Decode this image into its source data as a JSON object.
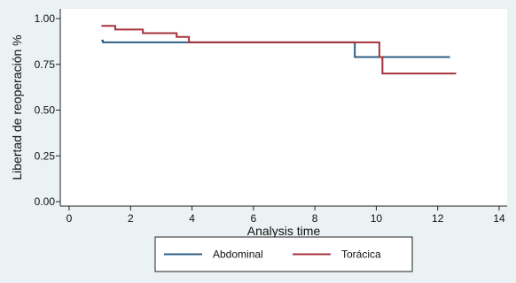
{
  "chart_data": {
    "type": "line",
    "xlabel": "Analysis time",
    "ylabel": "Libertad de reoperación %",
    "xlim": [
      0,
      14
    ],
    "ylim": [
      0,
      1
    ],
    "x_ticks": [
      "0",
      "2",
      "4",
      "6",
      "8",
      "10",
      "12",
      "14"
    ],
    "y_ticks": [
      "0.00",
      "0.25",
      "0.50",
      "0.75",
      "1.00"
    ],
    "grid": false,
    "legend_position": "bottom",
    "series": [
      {
        "name": "Abdominal",
        "color": "#2f5f86",
        "step": true,
        "x": [
          1.05,
          1.1,
          9.3,
          12.4
        ],
        "y": [
          0.88,
          0.87,
          0.79,
          0.79
        ]
      },
      {
        "name": "Torácica",
        "color": "#a5333c",
        "step": true,
        "x": [
          1.05,
          1.5,
          2.4,
          3.5,
          3.9,
          10.1,
          10.2,
          12.6
        ],
        "y": [
          0.96,
          0.94,
          0.92,
          0.9,
          0.87,
          0.79,
          0.7,
          0.7
        ]
      }
    ]
  }
}
